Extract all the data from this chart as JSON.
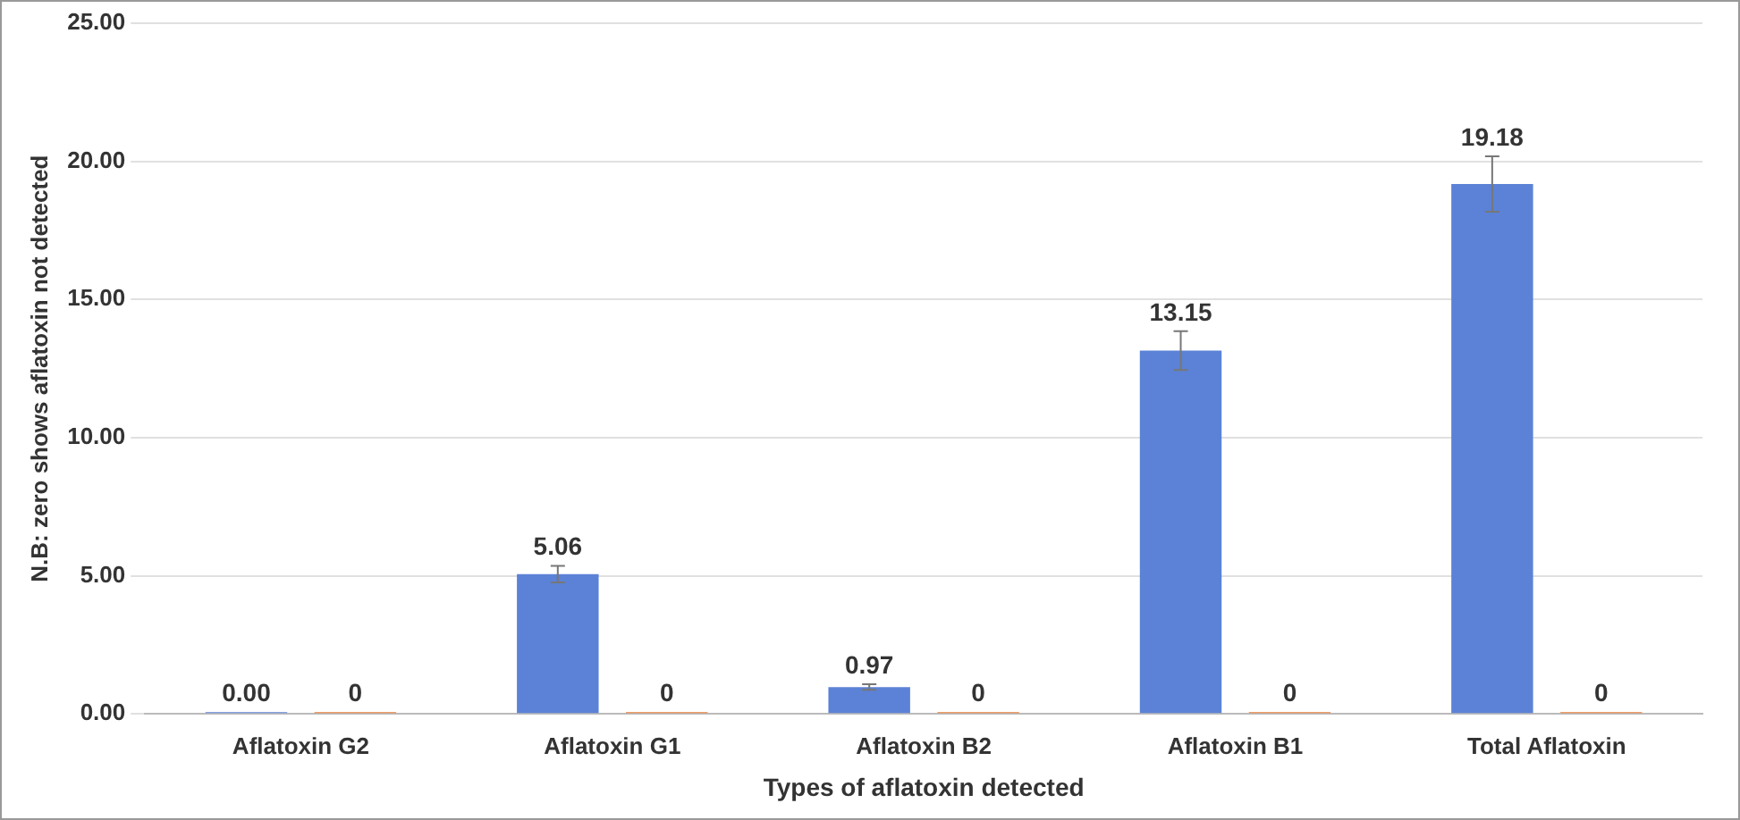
{
  "chart_data": {
    "type": "bar",
    "xlabel": "Types of aflatoxin detected",
    "ylabel": "N.B: zero shows aflatoxin not detected",
    "categories": [
      "Aflatoxin G2",
      "Aflatoxin G1",
      "Aflatoxin B2",
      "Aflatoxin B1",
      "Total Aflatoxin"
    ],
    "series": [
      {
        "color": "#5b82d6",
        "values": [
          0,
          5.06,
          0.97,
          13.15,
          19.18
        ],
        "value_labels": [
          "0.00",
          "5.06",
          "0.97",
          "13.15",
          "19.18"
        ],
        "errors": [
          null,
          0.3,
          0.1,
          0.7,
          1.0
        ]
      },
      {
        "color": "#ed7d31",
        "values": [
          0,
          0,
          0,
          0,
          0
        ],
        "value_labels": [
          "0",
          "0",
          "0",
          "0",
          "0"
        ]
      }
    ],
    "ylim": [
      0,
      25
    ],
    "yticks": [
      {
        "value": 0,
        "label": "0.00"
      },
      {
        "value": 5,
        "label": "5.00"
      },
      {
        "value": 10,
        "label": "10.00"
      },
      {
        "value": 15,
        "label": "15.00"
      },
      {
        "value": 20,
        "label": "20.00"
      },
      {
        "value": 25,
        "label": "25.00"
      }
    ],
    "grid": "y",
    "legend": false
  }
}
